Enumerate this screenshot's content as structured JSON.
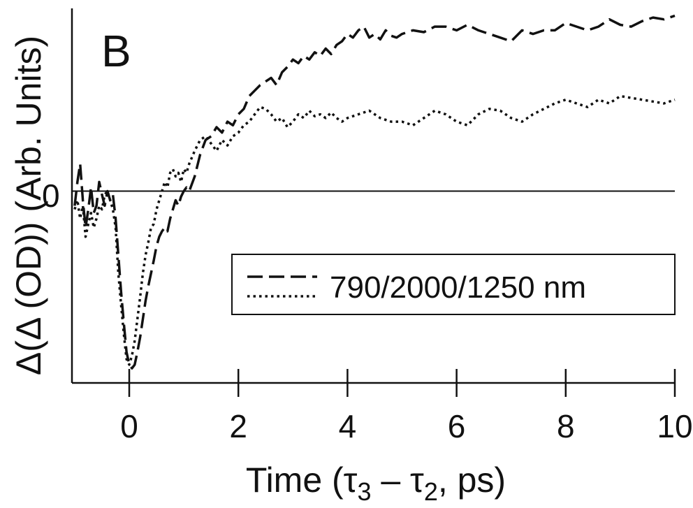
{
  "chart_data": {
    "type": "line",
    "panel_label": "B",
    "xlabel": "Time (τ3 – τ2, ps)",
    "xlabel_parts": {
      "pre": "Time (τ",
      "sub1": "3",
      "mid": " – τ",
      "sub2": "2",
      "post": ", ps)"
    },
    "ylabel": "Δ(Δ (OD)) (Arb. Units)",
    "xlim": [
      -1.05,
      10
    ],
    "ylim": [
      -1.05,
      1.0
    ],
    "x_ticks": [
      0,
      2,
      4,
      6,
      8,
      10
    ],
    "x_tick_labels": [
      "0",
      "2",
      "4",
      "6",
      "8",
      "10"
    ],
    "zero_label": "0",
    "zero_line": true,
    "grid": false,
    "legend": {
      "placement": "center-right",
      "label": "790/2000/1250 nm"
    },
    "series": [
      {
        "style": "dashed",
        "color": "#111111",
        "x": [
          -1.0,
          -0.95,
          -0.9,
          -0.85,
          -0.8,
          -0.75,
          -0.7,
          -0.65,
          -0.6,
          -0.55,
          -0.5,
          -0.45,
          -0.4,
          -0.35,
          -0.3,
          -0.25,
          -0.2,
          -0.15,
          -0.1,
          -0.05,
          0.0,
          0.05,
          0.1,
          0.15,
          0.2,
          0.25,
          0.3,
          0.35,
          0.4,
          0.45,
          0.5,
          0.55,
          0.6,
          0.65,
          0.7,
          0.75,
          0.8,
          0.85,
          0.9,
          0.95,
          1.0,
          1.05,
          1.1,
          1.2,
          1.3,
          1.4,
          1.5,
          1.6,
          1.7,
          1.8,
          1.9,
          2.0,
          2.1,
          2.2,
          2.3,
          2.4,
          2.5,
          2.6,
          2.7,
          2.8,
          2.9,
          3.0,
          3.1,
          3.2,
          3.3,
          3.4,
          3.5,
          3.6,
          3.7,
          3.8,
          3.9,
          4.0,
          4.1,
          4.2,
          4.3,
          4.4,
          4.5,
          4.6,
          4.7,
          4.8,
          4.9,
          5.0,
          5.2,
          5.4,
          5.6,
          5.8,
          6.0,
          6.2,
          6.4,
          6.6,
          6.8,
          7.0,
          7.2,
          7.4,
          7.6,
          7.8,
          8.0,
          8.2,
          8.4,
          8.6,
          8.8,
          9.0,
          9.2,
          9.4,
          9.6,
          9.8,
          10.0
        ],
        "y": [
          -0.08,
          0.05,
          0.15,
          -0.05,
          -0.2,
          -0.1,
          0.02,
          -0.12,
          -0.08,
          0.05,
          -0.02,
          -0.08,
          0.0,
          -0.05,
          -0.02,
          -0.15,
          -0.35,
          -0.55,
          -0.72,
          -0.88,
          -0.95,
          -0.97,
          -0.95,
          -0.88,
          -0.8,
          -0.7,
          -0.6,
          -0.52,
          -0.45,
          -0.38,
          -0.3,
          -0.25,
          -0.22,
          -0.2,
          -0.22,
          -0.15,
          -0.1,
          -0.05,
          -0.08,
          -0.03,
          0.0,
          0.02,
          0.0,
          0.08,
          0.2,
          0.28,
          0.3,
          0.35,
          0.32,
          0.38,
          0.36,
          0.42,
          0.45,
          0.52,
          0.55,
          0.58,
          0.6,
          0.62,
          0.58,
          0.65,
          0.68,
          0.72,
          0.7,
          0.74,
          0.72,
          0.76,
          0.74,
          0.78,
          0.75,
          0.8,
          0.82,
          0.86,
          0.84,
          0.88,
          0.9,
          0.84,
          0.86,
          0.83,
          0.88,
          0.85,
          0.84,
          0.86,
          0.88,
          0.87,
          0.9,
          0.9,
          0.88,
          0.91,
          0.88,
          0.86,
          0.84,
          0.82,
          0.88,
          0.86,
          0.88,
          0.88,
          0.92,
          0.9,
          0.88,
          0.9,
          0.94,
          0.91,
          0.9,
          0.93,
          0.95,
          0.94,
          0.96
        ]
      },
      {
        "style": "dotted",
        "color": "#111111",
        "x": [
          -1.0,
          -0.95,
          -0.9,
          -0.85,
          -0.8,
          -0.75,
          -0.7,
          -0.65,
          -0.6,
          -0.55,
          -0.5,
          -0.45,
          -0.4,
          -0.35,
          -0.3,
          -0.25,
          -0.2,
          -0.15,
          -0.1,
          -0.05,
          0.0,
          0.05,
          0.1,
          0.15,
          0.2,
          0.25,
          0.3,
          0.35,
          0.4,
          0.45,
          0.5,
          0.55,
          0.6,
          0.65,
          0.7,
          0.75,
          0.8,
          0.85,
          0.9,
          0.95,
          1.0,
          1.05,
          1.1,
          1.2,
          1.3,
          1.4,
          1.5,
          1.6,
          1.7,
          1.8,
          1.9,
          2.0,
          2.1,
          2.2,
          2.3,
          2.4,
          2.5,
          2.6,
          2.7,
          2.8,
          2.9,
          3.0,
          3.1,
          3.2,
          3.3,
          3.4,
          3.5,
          3.6,
          3.7,
          3.8,
          3.9,
          4.0,
          4.2,
          4.4,
          4.6,
          4.8,
          5.0,
          5.2,
          5.4,
          5.6,
          5.8,
          6.0,
          6.2,
          6.4,
          6.6,
          6.8,
          7.0,
          7.2,
          7.4,
          7.6,
          7.8,
          8.0,
          8.2,
          8.4,
          8.6,
          8.8,
          9.0,
          9.2,
          9.4,
          9.6,
          9.8,
          10.0
        ],
        "y": [
          -0.1,
          -0.05,
          -0.15,
          -0.08,
          -0.25,
          -0.18,
          -0.12,
          -0.2,
          -0.15,
          -0.08,
          -0.1,
          -0.02,
          0.0,
          -0.05,
          -0.1,
          -0.2,
          -0.45,
          -0.62,
          -0.78,
          -0.92,
          -0.95,
          -0.9,
          -0.82,
          -0.7,
          -0.58,
          -0.45,
          -0.35,
          -0.28,
          -0.2,
          -0.18,
          -0.1,
          -0.05,
          0.0,
          0.05,
          0.02,
          0.1,
          0.12,
          0.08,
          0.1,
          0.05,
          0.12,
          0.1,
          0.15,
          0.22,
          0.28,
          0.3,
          0.26,
          0.22,
          0.28,
          0.25,
          0.3,
          0.32,
          0.36,
          0.38,
          0.42,
          0.46,
          0.45,
          0.42,
          0.38,
          0.4,
          0.35,
          0.38,
          0.42,
          0.4,
          0.44,
          0.41,
          0.42,
          0.4,
          0.43,
          0.4,
          0.38,
          0.4,
          0.42,
          0.44,
          0.4,
          0.38,
          0.38,
          0.36,
          0.4,
          0.44,
          0.42,
          0.38,
          0.36,
          0.42,
          0.45,
          0.44,
          0.4,
          0.38,
          0.42,
          0.45,
          0.48,
          0.5,
          0.48,
          0.46,
          0.5,
          0.48,
          0.52,
          0.51,
          0.5,
          0.49,
          0.48,
          0.5
        ]
      }
    ]
  }
}
